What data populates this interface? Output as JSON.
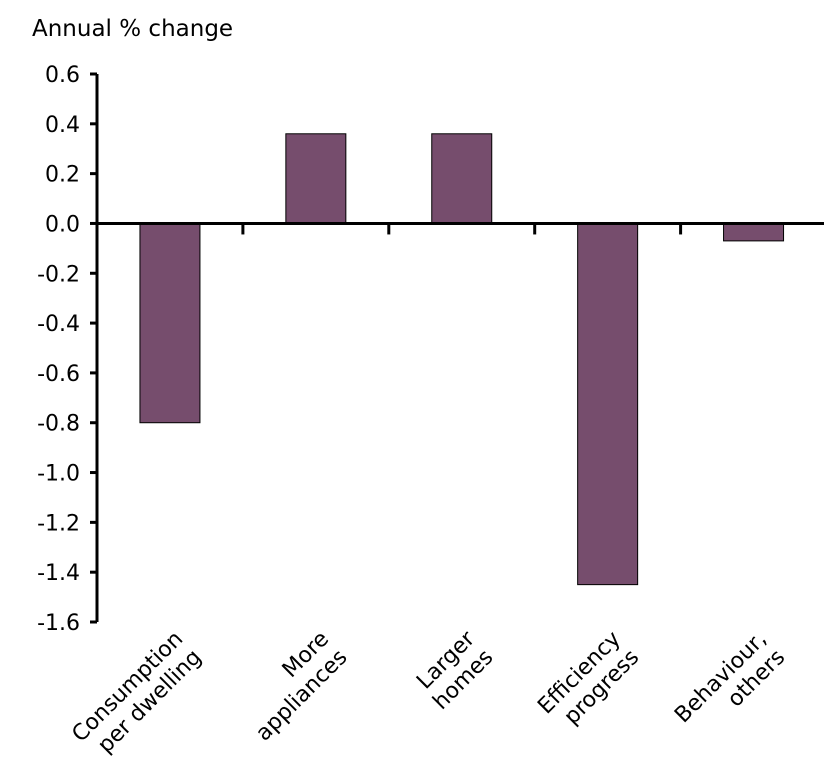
{
  "chart_data": {
    "type": "bar",
    "title": "",
    "ylabel": "Annual % change",
    "xlabel": "",
    "categories": [
      [
        "Consumption",
        "per dwelling"
      ],
      [
        "More",
        "appliances"
      ],
      [
        "Larger",
        "homes"
      ],
      [
        "Efficiency",
        "progress"
      ],
      [
        "Behaviour,",
        "others"
      ]
    ],
    "values": [
      -0.8,
      0.36,
      0.36,
      -1.45,
      -0.07
    ],
    "ylim": [
      -1.6,
      0.6
    ],
    "yticks": [
      "0.6",
      "0.4",
      "0.2",
      "0.0",
      "-0.2",
      "-0.4",
      "-0.6",
      "-0.8",
      "-1.0",
      "-1.2",
      "-1.4",
      "-1.6"
    ],
    "grid": false,
    "legend": "none"
  },
  "colors": {
    "bar": "#764d6d",
    "axis": "#000000"
  }
}
